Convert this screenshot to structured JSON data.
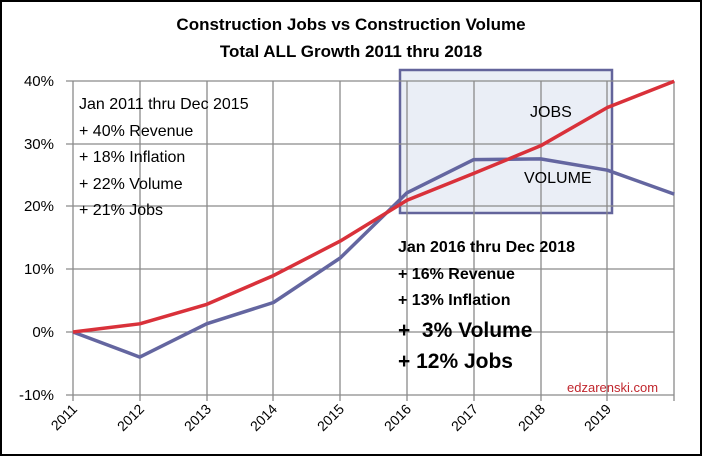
{
  "chart": {
    "title_line1": "Construction Jobs vs Construction Volume",
    "title_line2": "Total ALL Growth 2011 thru 2018",
    "y_ticks": [
      "40%",
      "30%",
      "20%",
      "10%",
      "0%",
      "-10%"
    ],
    "x_ticks": [
      "2011",
      "2012",
      "2013",
      "2014",
      "2015",
      "2016",
      "2017",
      "2018",
      "2019"
    ],
    "series_labels": {
      "jobs": "JOBS",
      "volume": "VOLUME"
    },
    "annotation_left": {
      "line1": "Jan 2011 thru Dec 2015",
      "line2": "+ 40% Revenue",
      "line3": "+ 18% Inflation",
      "line4": "+ 22% Volume",
      "line5": "+ 21% Jobs"
    },
    "annotation_right": {
      "line1": "Jan 2016 thru Dec 2018",
      "line2": "+ 16% Revenue",
      "line3": "+ 13% Inflation",
      "line4": "+  3% Volume",
      "line5": "+ 12% Jobs"
    },
    "watermark": "edzarenski.com",
    "colors": {
      "jobs": "#d9313a",
      "volume": "#6466a0",
      "highlight_fill": "#eaeef6",
      "highlight_border": "#63649b",
      "grid": "#8a8a8a",
      "watermark": "#c0262d"
    }
  },
  "chart_data": {
    "type": "line",
    "title": "Construction Jobs vs Construction Volume — Total ALL Growth 2011 thru 2018",
    "xlabel": "",
    "ylabel": "",
    "x": [
      2011,
      2012,
      2013,
      2014,
      2015,
      2016,
      2017,
      2018,
      2019,
      2020
    ],
    "x_tick_labels": [
      "2011",
      "2012",
      "2013",
      "2014",
      "2015",
      "2016",
      "2017",
      "2018",
      "2019"
    ],
    "series": [
      {
        "name": "JOBS",
        "color": "#d9313a",
        "values": [
          0,
          1.3,
          4.4,
          9.0,
          14.5,
          21.0,
          25.3,
          29.7,
          35.8,
          40.0
        ]
      },
      {
        "name": "VOLUME",
        "color": "#6466a0",
        "values": [
          0,
          -4.0,
          1.3,
          4.7,
          11.8,
          22.2,
          27.5,
          27.6,
          25.8,
          22.0
        ]
      }
    ],
    "ylim": [
      -10,
      40
    ],
    "y_unit": "%",
    "grid": true,
    "legend": "inline labels (JOBS, VOLUME) inside highlighted box spanning 2016-2019",
    "highlight_region": {
      "x_from": 2016,
      "x_to": 2019,
      "y_from": 19,
      "y_to": 41
    },
    "annotations": [
      "Jan 2011 thru Dec 2015: + 40% Revenue, + 18% Inflation, + 22% Volume, + 21% Jobs",
      "Jan 2016 thru Dec 2018: + 16% Revenue, + 13% Inflation, + 3% Volume, + 12% Jobs",
      "edzarenski.com"
    ]
  }
}
